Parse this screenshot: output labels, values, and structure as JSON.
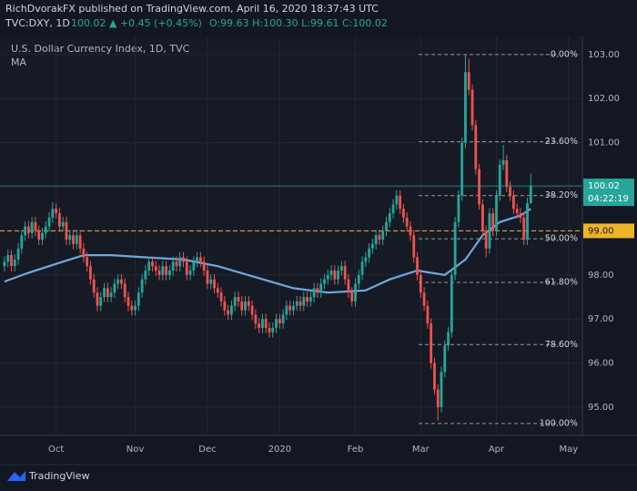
{
  "chart_data": {
    "type": "candlestick",
    "header": "RichDvorakFX published on TradingView.com, April 16, 2020 18:37:43 UTC",
    "symbol": "TVC:DXY, 1D",
    "change": "100.02 ▲ +0.45 (+0.45%)",
    "ohlc_text": "O:99.63 H:100.30 L:99.61 C:100.02",
    "title": "U.S. Dollar Currency Index, 1D, TVC",
    "indicator": "MA",
    "footer": "TradingView",
    "up_color": "#26a69a",
    "down_color": "#ef5350",
    "ma_color": "#6fa8dc",
    "grid": true,
    "xlim": [
      -1.3,
      168
    ],
    "xticks": [
      {
        "value": 15,
        "label": "Oct"
      },
      {
        "value": 38,
        "label": "Nov"
      },
      {
        "value": 59,
        "label": "Dec"
      },
      {
        "value": 80,
        "label": "2020"
      },
      {
        "value": 102,
        "label": "Feb"
      },
      {
        "value": 121,
        "label": "Mar"
      },
      {
        "value": 143,
        "label": "Apr"
      },
      {
        "value": 164,
        "label": "May"
      }
    ],
    "ylim": [
      94.36,
      103.41
    ],
    "yticks": [
      {
        "value": 95,
        "label": "95.00"
      },
      {
        "value": 96,
        "label": "96.00"
      },
      {
        "value": 97,
        "label": "97.00"
      },
      {
        "value": 98,
        "label": "98.00"
      },
      {
        "value": 99,
        "label": "99.00"
      },
      {
        "value": 100,
        "label": "100.00"
      },
      {
        "value": 101,
        "label": "101.00"
      },
      {
        "value": 102,
        "label": "102.00"
      },
      {
        "value": 103,
        "label": "103.00"
      }
    ],
    "current_price": 100.02,
    "countdown": "04:22:19",
    "level": {
      "value": 99,
      "label": "99.00"
    },
    "fib": [
      {
        "label": "0.00%",
        "price": 103.0
      },
      {
        "label": "23.60%",
        "price": 101.02
      },
      {
        "label": "38.20%",
        "price": 99.8
      },
      {
        "label": "50.00%",
        "price": 98.82
      },
      {
        "label": "61.80%",
        "price": 97.83
      },
      {
        "label": "78.60%",
        "price": 96.42
      },
      {
        "label": "100.00%",
        "price": 94.63
      }
    ],
    "ma": {
      "x": [
        0,
        7,
        15,
        23,
        31,
        41,
        52,
        62,
        73,
        84,
        94,
        105,
        112,
        120,
        128,
        134,
        139,
        144,
        150,
        153
      ],
      "values": [
        97.85,
        98.05,
        98.25,
        98.45,
        98.45,
        98.4,
        98.35,
        98.2,
        97.95,
        97.7,
        97.6,
        97.65,
        97.9,
        98.1,
        98.0,
        98.35,
        98.9,
        99.2,
        99.35,
        99.5
      ]
    },
    "ohlc": [
      [
        98.2,
        98.42,
        98.08,
        98.3
      ],
      [
        98.3,
        98.57,
        98.18,
        98.45
      ],
      [
        98.45,
        98.57,
        98.08,
        98.2
      ],
      [
        98.2,
        98.47,
        98.08,
        98.35
      ],
      [
        98.35,
        98.72,
        98.23,
        98.6
      ],
      [
        98.6,
        99.02,
        98.48,
        98.9
      ],
      [
        98.9,
        99.22,
        98.78,
        99.1
      ],
      [
        99.1,
        99.22,
        98.83,
        98.95
      ],
      [
        98.95,
        99.32,
        98.83,
        99.2
      ],
      [
        99.2,
        99.32,
        98.88,
        99.0
      ],
      [
        99.0,
        99.12,
        98.68,
        98.8
      ],
      [
        98.8,
        99.07,
        98.68,
        98.95
      ],
      [
        98.95,
        99.22,
        98.83,
        99.1
      ],
      [
        99.1,
        99.42,
        98.98,
        99.3
      ],
      [
        99.3,
        99.65,
        99.18,
        99.5
      ],
      [
        99.5,
        99.62,
        99.28,
        99.4
      ],
      [
        99.4,
        99.52,
        98.98,
        99.1
      ],
      [
        99.1,
        99.32,
        98.98,
        99.2
      ],
      [
        99.2,
        99.32,
        98.68,
        98.8
      ],
      [
        98.8,
        99.02,
        98.68,
        98.9
      ],
      [
        98.9,
        99.02,
        98.58,
        98.7
      ],
      [
        98.7,
        99.02,
        98.58,
        98.9
      ],
      [
        98.9,
        99.02,
        98.48,
        98.6
      ],
      [
        98.6,
        98.72,
        98.28,
        98.4
      ],
      [
        98.4,
        98.52,
        98.08,
        98.2
      ],
      [
        98.2,
        98.32,
        97.78,
        97.9
      ],
      [
        97.9,
        98.02,
        97.48,
        97.6
      ],
      [
        97.6,
        97.72,
        97.18,
        97.3
      ],
      [
        97.3,
        97.62,
        97.18,
        97.5
      ],
      [
        97.5,
        97.82,
        97.38,
        97.7
      ],
      [
        97.7,
        97.82,
        97.38,
        97.5
      ],
      [
        97.5,
        97.72,
        97.38,
        97.6
      ],
      [
        97.6,
        97.92,
        97.48,
        97.8
      ],
      [
        97.8,
        98.02,
        97.68,
        97.9
      ],
      [
        97.9,
        98.02,
        97.68,
        97.8
      ],
      [
        97.8,
        97.92,
        97.38,
        97.5
      ],
      [
        97.5,
        97.62,
        97.18,
        97.3
      ],
      [
        97.3,
        97.42,
        97.08,
        97.2
      ],
      [
        97.2,
        97.42,
        97.08,
        97.3
      ],
      [
        97.3,
        97.72,
        97.18,
        97.6
      ],
      [
        97.6,
        98.02,
        97.48,
        97.9
      ],
      [
        97.9,
        98.22,
        97.78,
        98.1
      ],
      [
        98.1,
        98.42,
        97.98,
        98.3
      ],
      [
        98.3,
        98.42,
        98.08,
        98.2
      ],
      [
        98.2,
        98.32,
        97.98,
        98.1
      ],
      [
        98.1,
        98.22,
        97.88,
        98.0
      ],
      [
        98.0,
        98.32,
        97.88,
        98.2
      ],
      [
        98.2,
        98.32,
        97.88,
        98.0
      ],
      [
        98.0,
        98.22,
        97.88,
        98.1
      ],
      [
        98.1,
        98.42,
        97.98,
        98.3
      ],
      [
        98.3,
        98.42,
        98.08,
        98.2
      ],
      [
        98.2,
        98.52,
        98.08,
        98.4
      ],
      [
        98.4,
        98.52,
        98.18,
        98.3
      ],
      [
        98.3,
        98.42,
        97.88,
        98.0
      ],
      [
        98.0,
        98.22,
        97.88,
        98.1
      ],
      [
        98.1,
        98.42,
        97.98,
        98.3
      ],
      [
        98.3,
        98.52,
        98.18,
        98.4
      ],
      [
        98.4,
        98.52,
        98.18,
        98.3
      ],
      [
        98.3,
        98.42,
        97.98,
        98.1
      ],
      [
        98.1,
        98.22,
        97.68,
        97.8
      ],
      [
        97.8,
        98.02,
        97.68,
        97.9
      ],
      [
        97.9,
        98.02,
        97.58,
        97.7
      ],
      [
        97.7,
        97.82,
        97.48,
        97.6
      ],
      [
        97.6,
        97.72,
        97.28,
        97.4
      ],
      [
        97.4,
        97.52,
        97.08,
        97.2
      ],
      [
        97.2,
        97.32,
        96.98,
        97.1
      ],
      [
        97.1,
        97.42,
        96.98,
        97.3
      ],
      [
        97.3,
        97.62,
        97.18,
        97.5
      ],
      [
        97.5,
        97.62,
        97.28,
        97.4
      ],
      [
        97.4,
        97.52,
        97.08,
        97.2
      ],
      [
        97.2,
        97.52,
        97.08,
        97.4
      ],
      [
        97.4,
        97.52,
        97.18,
        97.3
      ],
      [
        97.3,
        97.42,
        96.98,
        97.1
      ],
      [
        97.1,
        97.22,
        96.78,
        96.9
      ],
      [
        96.9,
        97.02,
        96.68,
        96.8
      ],
      [
        96.8,
        97.12,
        96.68,
        97.0
      ],
      [
        97.0,
        97.12,
        96.68,
        96.8
      ],
      [
        96.8,
        96.92,
        96.58,
        96.7
      ],
      [
        96.7,
        96.92,
        96.58,
        96.8
      ],
      [
        96.8,
        97.12,
        96.68,
        97.0
      ],
      [
        97.0,
        97.12,
        96.78,
        96.9
      ],
      [
        96.9,
        97.22,
        96.78,
        97.1
      ],
      [
        97.1,
        97.42,
        96.98,
        97.3
      ],
      [
        97.3,
        97.42,
        97.08,
        97.2
      ],
      [
        97.2,
        97.42,
        97.08,
        97.3
      ],
      [
        97.3,
        97.52,
        97.18,
        97.4
      ],
      [
        97.4,
        97.52,
        97.18,
        97.3
      ],
      [
        97.3,
        97.62,
        97.18,
        97.5
      ],
      [
        97.5,
        97.62,
        97.28,
        97.4
      ],
      [
        97.4,
        97.62,
        97.28,
        97.5
      ],
      [
        97.5,
        97.82,
        97.38,
        97.7
      ],
      [
        97.7,
        97.82,
        97.48,
        97.6
      ],
      [
        97.6,
        97.92,
        97.48,
        97.8
      ],
      [
        97.8,
        98.02,
        97.68,
        97.9
      ],
      [
        97.9,
        98.12,
        97.78,
        98.0
      ],
      [
        98.0,
        98.22,
        97.88,
        98.1
      ],
      [
        98.1,
        98.22,
        97.78,
        97.9
      ],
      [
        97.9,
        98.22,
        97.78,
        98.1
      ],
      [
        98.1,
        98.32,
        97.98,
        98.2
      ],
      [
        98.2,
        98.32,
        97.78,
        97.9
      ],
      [
        97.9,
        98.02,
        97.48,
        97.6
      ],
      [
        97.6,
        97.72,
        97.28,
        97.4
      ],
      [
        97.4,
        97.92,
        97.28,
        97.8
      ],
      [
        97.8,
        98.12,
        97.68,
        98.0
      ],
      [
        98.0,
        98.42,
        97.88,
        98.3
      ],
      [
        98.3,
        98.52,
        98.18,
        98.4
      ],
      [
        98.4,
        98.72,
        98.28,
        98.6
      ],
      [
        98.6,
        98.82,
        98.48,
        98.7
      ],
      [
        98.7,
        99.02,
        98.58,
        98.9
      ],
      [
        98.9,
        99.02,
        98.68,
        98.8
      ],
      [
        98.8,
        99.12,
        98.68,
        99.0
      ],
      [
        99.0,
        99.32,
        98.88,
        99.2
      ],
      [
        99.2,
        99.52,
        99.08,
        99.4
      ],
      [
        99.4,
        99.72,
        99.28,
        99.6
      ],
      [
        99.6,
        99.92,
        99.48,
        99.8
      ],
      [
        99.8,
        99.92,
        99.38,
        99.5
      ],
      [
        99.5,
        99.62,
        99.18,
        99.3
      ],
      [
        99.3,
        99.42,
        98.98,
        99.1
      ],
      [
        99.1,
        99.22,
        98.78,
        98.9
      ],
      [
        98.9,
        99.02,
        98.28,
        98.4
      ],
      [
        98.4,
        98.52,
        97.88,
        98.0
      ],
      [
        98.0,
        98.12,
        97.48,
        97.6
      ],
      [
        97.6,
        97.72,
        97.18,
        97.3
      ],
      [
        97.3,
        97.42,
        96.78,
        96.9
      ],
      [
        96.9,
        97.02,
        95.88,
        96.0
      ],
      [
        96.0,
        96.12,
        95.28,
        95.4
      ],
      [
        95.4,
        95.52,
        94.7,
        95.0
      ],
      [
        95.0,
        95.92,
        94.88,
        95.8
      ],
      [
        95.8,
        96.52,
        95.68,
        96.4
      ],
      [
        96.4,
        96.82,
        96.28,
        96.7
      ],
      [
        96.7,
        98.12,
        96.58,
        98.0
      ],
      [
        98.0,
        99.32,
        97.88,
        99.2
      ],
      [
        99.2,
        99.92,
        99.08,
        99.8
      ],
      [
        99.8,
        101.12,
        99.68,
        101.0
      ],
      [
        101.0,
        103.0,
        100.88,
        102.6
      ],
      [
        102.6,
        102.9,
        102.08,
        102.2
      ],
      [
        102.2,
        102.32,
        101.28,
        101.4
      ],
      [
        101.4,
        101.52,
        100.28,
        100.4
      ],
      [
        100.4,
        100.52,
        99.48,
        99.6
      ],
      [
        99.6,
        99.72,
        98.88,
        99.0
      ],
      [
        99.0,
        99.12,
        98.4,
        98.6
      ],
      [
        98.6,
        99.52,
        98.48,
        99.4
      ],
      [
        99.4,
        99.52,
        98.88,
        99.0
      ],
      [
        99.0,
        99.92,
        98.88,
        99.8
      ],
      [
        99.8,
        100.62,
        99.68,
        100.5
      ],
      [
        100.5,
        100.95,
        100.38,
        100.6
      ],
      [
        100.6,
        100.72,
        99.88,
        100.0
      ],
      [
        100.0,
        100.12,
        99.68,
        99.8
      ],
      [
        99.8,
        99.92,
        99.38,
        99.5
      ],
      [
        99.5,
        99.62,
        99.28,
        99.4
      ],
      [
        99.4,
        99.52,
        99.18,
        99.3
      ],
      [
        99.3,
        99.42,
        98.68,
        98.8
      ],
      [
        98.8,
        99.75,
        98.68,
        99.63
      ],
      [
        99.63,
        100.3,
        99.61,
        100.02
      ]
    ]
  }
}
